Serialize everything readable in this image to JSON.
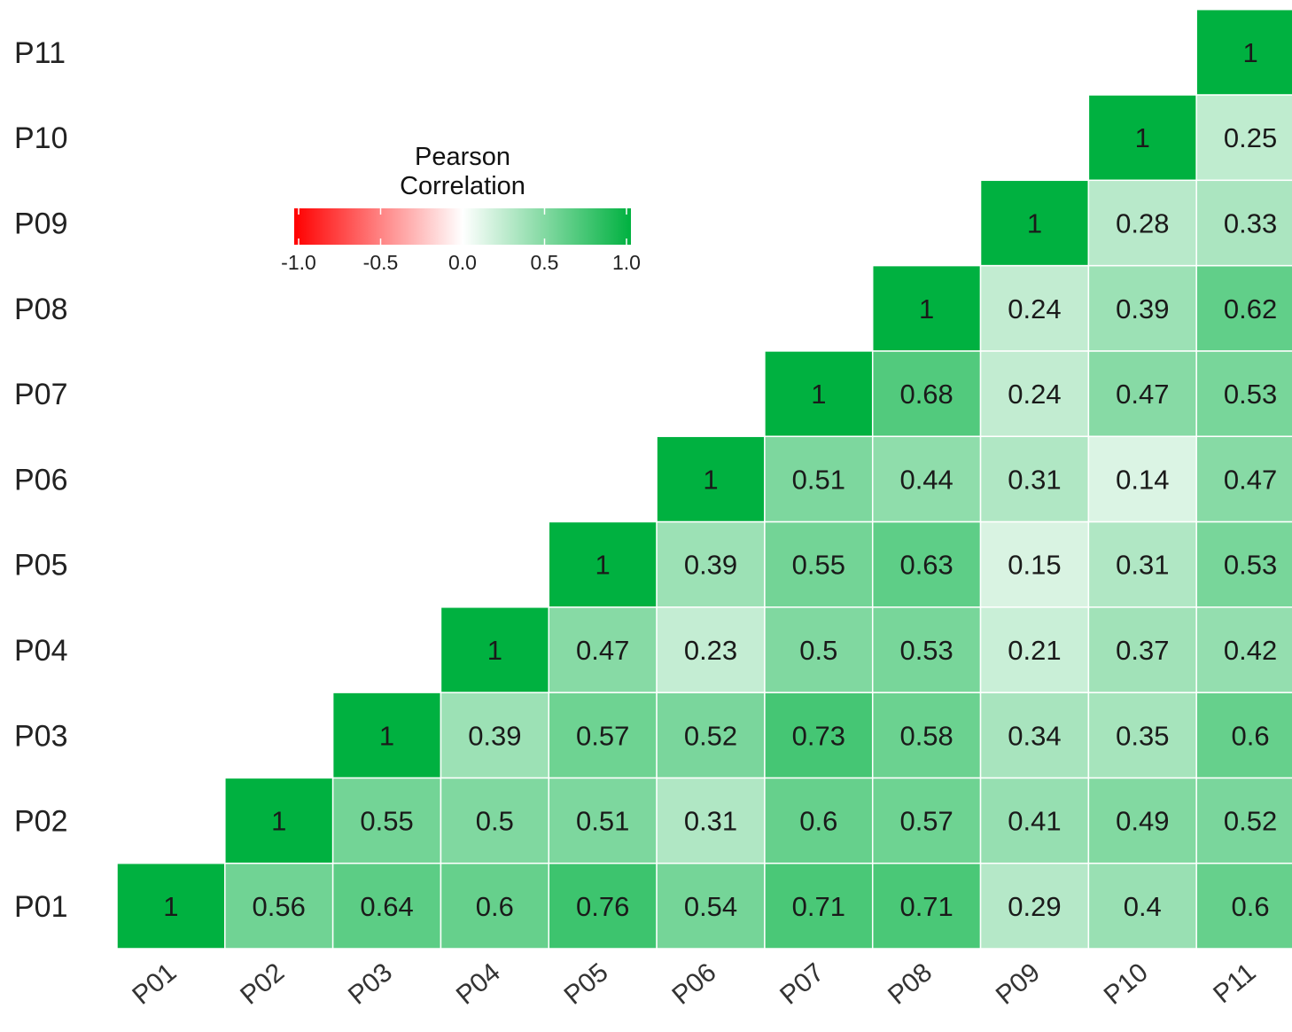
{
  "chart_data": {
    "type": "heatmap",
    "title": "",
    "xlabel": "",
    "ylabel": "",
    "x_categories": [
      "P01",
      "P02",
      "P03",
      "P04",
      "P05",
      "P06",
      "P07",
      "P08",
      "P09",
      "P10",
      "P11"
    ],
    "y_categories": [
      "P01",
      "P02",
      "P03",
      "P04",
      "P05",
      "P06",
      "P07",
      "P08",
      "P09",
      "P10",
      "P11"
    ],
    "layout": "upper-triangular",
    "matrix": [
      [
        1,
        0.56,
        0.64,
        0.6,
        0.76,
        0.54,
        0.71,
        0.71,
        0.29,
        0.4,
        0.6
      ],
      [
        null,
        1,
        0.55,
        0.5,
        0.51,
        0.31,
        0.6,
        0.57,
        0.41,
        0.49,
        0.52
      ],
      [
        null,
        null,
        1,
        0.39,
        0.57,
        0.52,
        0.73,
        0.58,
        0.34,
        0.35,
        0.6
      ],
      [
        null,
        null,
        null,
        1,
        0.47,
        0.23,
        0.5,
        0.53,
        0.21,
        0.37,
        0.42
      ],
      [
        null,
        null,
        null,
        null,
        1,
        0.39,
        0.55,
        0.63,
        0.15,
        0.31,
        0.53
      ],
      [
        null,
        null,
        null,
        null,
        null,
        1,
        0.51,
        0.44,
        0.31,
        0.14,
        0.47
      ],
      [
        null,
        null,
        null,
        null,
        null,
        null,
        1,
        0.68,
        0.24,
        0.47,
        0.53
      ],
      [
        null,
        null,
        null,
        null,
        null,
        null,
        null,
        1,
        0.24,
        0.39,
        0.62
      ],
      [
        null,
        null,
        null,
        null,
        null,
        null,
        null,
        null,
        1,
        0.28,
        0.33
      ],
      [
        null,
        null,
        null,
        null,
        null,
        null,
        null,
        null,
        null,
        1,
        0.25
      ],
      [
        null,
        null,
        null,
        null,
        null,
        null,
        null,
        null,
        null,
        null,
        1
      ]
    ],
    "colorscale": {
      "title_line1": "Pearson",
      "title_line2": "Correlation",
      "min": -1,
      "max": 1,
      "low_color": "#ff0000",
      "mid_color": "#ffffff",
      "high_color": "#00b140",
      "ticks": [
        -1,
        -0.5,
        0,
        0.5,
        1
      ],
      "tick_labels": [
        "-1.0",
        "-0.5",
        "0.0",
        "0.5",
        "1.0"
      ]
    },
    "legend_position": "upper-left",
    "grid": false
  }
}
